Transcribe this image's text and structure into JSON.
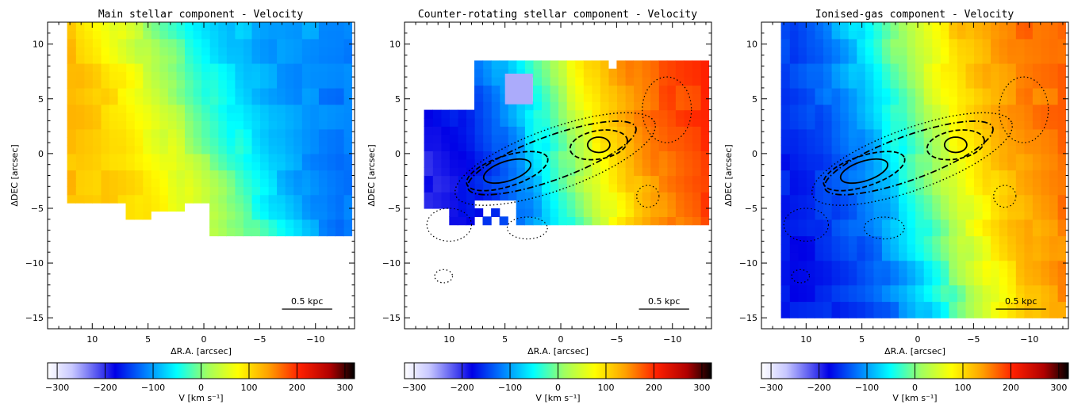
{
  "chart_data": [
    {
      "type": "heatmap",
      "title": "Main stellar component - Velocity",
      "xlabel": "ΔR.A. [arcsec]",
      "ylabel": "ΔDEC [arcsec]",
      "xlim": [
        14,
        -13.5
      ],
      "ylim": [
        -16,
        12
      ],
      "xticks": [
        10,
        5,
        0,
        -5,
        -10
      ],
      "yticks": [
        10,
        5,
        0,
        -5,
        -10,
        -15
      ],
      "scalebar_label": "0.5 kpc",
      "colorbar": {
        "label": "V [km s⁻¹]",
        "range": [
          -320,
          320
        ],
        "ticks": [
          -300,
          -200,
          -100,
          0,
          100,
          200,
          300
        ]
      },
      "velocity_field": {
        "systemic": 0,
        "max_rotation": 140,
        "position_angle": "north-west receding",
        "extent_x": [
          -12.5,
          13
        ],
        "extent_y": [
          -7.5,
          11.5
        ]
      },
      "contours": false
    },
    {
      "type": "heatmap",
      "title": "Counter-rotating stellar component - Velocity",
      "xlabel": "ΔR.A. [arcsec]",
      "ylabel": "ΔDEC [arcsec]",
      "xlim": [
        14,
        -13.5
      ],
      "ylim": [
        -16,
        12
      ],
      "xticks": [
        10,
        5,
        0,
        -5,
        -10
      ],
      "yticks": [
        10,
        5,
        0,
        -5,
        -10,
        -15
      ],
      "scalebar_label": "0.5 kpc",
      "colorbar": {
        "label": "V [km s⁻¹]",
        "range": [
          -320,
          320
        ],
        "ticks": [
          -300,
          -200,
          -100,
          0,
          100,
          200,
          300
        ]
      },
      "velocity_field": {
        "systemic": 0,
        "max_rotation": 210,
        "position_angle": "west receding",
        "extent_x": [
          -12.5,
          13
        ],
        "extent_y": [
          -6.5,
          8.5
        ]
      },
      "contours": true
    },
    {
      "type": "heatmap",
      "title": "Ionised-gas component - Velocity",
      "xlabel": "ΔR.A. [arcsec]",
      "ylabel": "ΔDEC [arcsec]",
      "xlim": [
        14,
        -13.5
      ],
      "ylim": [
        -16,
        12
      ],
      "xticks": [
        10,
        5,
        0,
        -5,
        -10
      ],
      "yticks": [
        10,
        5,
        0,
        -5,
        -10,
        -15
      ],
      "scalebar_label": "0.5 kpc",
      "colorbar": {
        "label": "V [km s⁻¹]",
        "range": [
          -320,
          320
        ],
        "ticks": [
          -300,
          -200,
          -100,
          0,
          100,
          200,
          300
        ]
      },
      "velocity_field": {
        "systemic": 0,
        "max_rotation": 180,
        "position_angle": "west receding",
        "extent_x": [
          -12.5,
          13
        ],
        "extent_y": [
          -15,
          11.5
        ]
      },
      "contours": true
    }
  ]
}
